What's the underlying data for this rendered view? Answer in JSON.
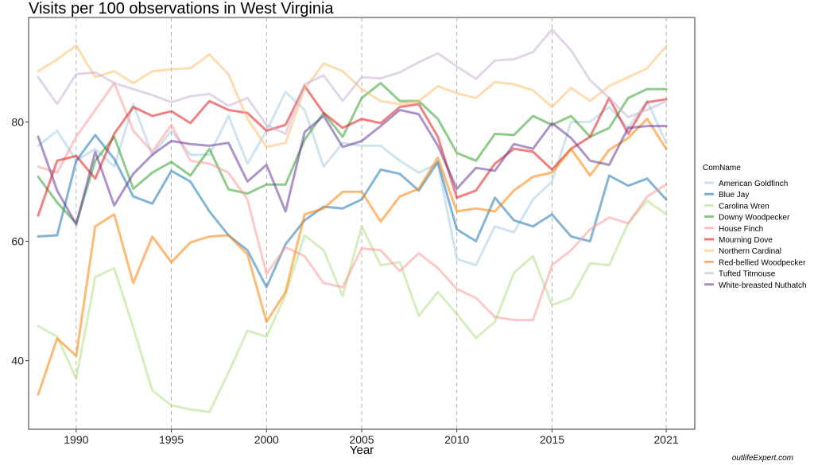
{
  "title": "Visits per 100 observations in West Virginia",
  "watermark": "outlifeExpert.com",
  "chart_data": {
    "type": "line",
    "title": "Visits per 100 observations in West Virginia",
    "xlabel": "Year",
    "ylabel": "",
    "xlim": [
      1987.5,
      2022.5
    ],
    "ylim": [
      28.5,
      97.5
    ],
    "xticks": [
      1990,
      1995,
      2000,
      2005,
      2010,
      2015,
      2021
    ],
    "yticks": [
      40,
      60,
      80
    ],
    "grid": "vertical dashed",
    "legend_title": "ComName",
    "legend_position": "right",
    "x": [
      1988,
      1989,
      1990,
      1991,
      1992,
      1993,
      1994,
      1995,
      1996,
      1997,
      1998,
      1999,
      2000,
      2001,
      2002,
      2003,
      2004,
      2005,
      2006,
      2007,
      2008,
      2009,
      2010,
      2011,
      2012,
      2013,
      2014,
      2015,
      2016,
      2017,
      2018,
      2019,
      2020,
      2021
    ],
    "series": [
      {
        "name": "American Goldfinch",
        "color": "#a6cee3",
        "values": [
          76.0,
          78.5,
          73.5,
          75.5,
          72.5,
          83.0,
          74.5,
          78.5,
          74.5,
          74.5,
          81.0,
          73.0,
          78.5,
          85.0,
          82.0,
          72.5,
          76.5,
          76.0,
          76.0,
          73.5,
          71.5,
          73.0,
          57.0,
          56.0,
          62.5,
          61.5,
          67.0,
          70.0,
          80.0,
          80.0,
          82.5,
          79.0,
          83.5,
          76.5
        ]
      },
      {
        "name": "Blue Jay",
        "color": "#1f78b4",
        "values": [
          60.8,
          61.0,
          73.5,
          77.8,
          73.8,
          67.5,
          66.3,
          71.8,
          70.0,
          65.0,
          61.0,
          58.5,
          52.3,
          59.5,
          63.5,
          65.8,
          65.5,
          67.0,
          72.0,
          71.3,
          68.5,
          73.3,
          62.0,
          60.0,
          67.3,
          63.5,
          62.5,
          64.5,
          60.8,
          60.0,
          71.0,
          69.3,
          70.5,
          67.0
        ]
      },
      {
        "name": "Carolina Wren",
        "color": "#b2df8a",
        "values": [
          45.8,
          44.0,
          37.0,
          54.0,
          55.5,
          45.5,
          35.0,
          32.5,
          31.8,
          31.4,
          38.0,
          45.0,
          44.0,
          51.0,
          61.0,
          58.5,
          50.8,
          62.5,
          56.0,
          56.5,
          47.5,
          51.5,
          47.8,
          43.8,
          46.5,
          54.7,
          57.5,
          49.3,
          50.5,
          56.3,
          56.0,
          63.0,
          66.8,
          64.5
        ]
      },
      {
        "name": "Downy Woodpecker",
        "color": "#33a02c",
        "values": [
          70.8,
          66.5,
          63.0,
          73.5,
          77.5,
          68.8,
          71.5,
          73.3,
          71.0,
          75.5,
          68.7,
          68.0,
          69.5,
          69.5,
          77.0,
          81.5,
          77.5,
          84.0,
          86.5,
          83.5,
          83.5,
          80.5,
          74.8,
          73.5,
          78.0,
          77.8,
          81.0,
          79.5,
          81.0,
          77.5,
          79.0,
          84.0,
          85.5,
          85.5
        ]
      },
      {
        "name": "House Finch",
        "color": "#fb9a99",
        "values": [
          72.5,
          71.5,
          77.5,
          82.0,
          86.5,
          78.5,
          75.0,
          79.5,
          73.5,
          73.0,
          71.5,
          67.0,
          54.5,
          59.0,
          57.5,
          53.0,
          52.3,
          58.8,
          58.5,
          55.0,
          58.0,
          55.5,
          52.0,
          50.5,
          47.3,
          46.8,
          46.8,
          56.0,
          58.5,
          62.0,
          64.0,
          63.0,
          67.5,
          69.5
        ]
      },
      {
        "name": "Mourning Dove",
        "color": "#e31a1c",
        "values": [
          64.3,
          73.5,
          74.3,
          70.5,
          78.0,
          82.5,
          81.0,
          81.8,
          79.8,
          83.5,
          82.0,
          81.5,
          78.5,
          79.5,
          86.0,
          81.5,
          79.0,
          80.5,
          79.8,
          82.5,
          83.0,
          77.5,
          67.3,
          68.5,
          73.0,
          75.5,
          75.0,
          72.0,
          75.5,
          77.5,
          84.0,
          78.0,
          83.3,
          83.8
        ]
      },
      {
        "name": "Northern Cardinal",
        "color": "#fdbf6f",
        "values": [
          88.5,
          90.5,
          92.8,
          87.5,
          88.5,
          86.5,
          88.5,
          88.8,
          89.0,
          91.3,
          88.0,
          80.5,
          75.8,
          76.5,
          85.5,
          89.8,
          88.5,
          85.5,
          83.5,
          83.0,
          83.5,
          86.0,
          84.8,
          84.0,
          86.7,
          86.3,
          85.3,
          82.5,
          85.7,
          83.5,
          86.0,
          87.5,
          89.0,
          92.7
        ]
      },
      {
        "name": "Red-bellied Woodpecker",
        "color": "#ff7f00",
        "values": [
          34.3,
          43.7,
          40.8,
          62.5,
          64.5,
          53.0,
          60.8,
          56.5,
          59.8,
          60.8,
          61.0,
          57.8,
          46.5,
          51.5,
          64.5,
          65.5,
          68.3,
          68.3,
          63.3,
          67.5,
          68.8,
          74.0,
          65.0,
          65.5,
          65.0,
          68.5,
          70.8,
          71.5,
          75.5,
          71.0,
          75.3,
          77.3,
          80.5,
          75.5
        ]
      },
      {
        "name": "Tufted Titmouse",
        "color": "#cab2d6",
        "values": [
          87.5,
          83.0,
          88.0,
          88.3,
          86.5,
          85.5,
          84.5,
          83.3,
          84.3,
          84.7,
          82.7,
          84.0,
          79.5,
          78.0,
          86.3,
          87.8,
          83.5,
          87.5,
          87.3,
          88.3,
          90.0,
          91.5,
          89.3,
          87.2,
          90.3,
          90.5,
          91.7,
          95.5,
          92.0,
          87.0,
          84.0,
          80.8,
          82.0,
          83.5
        ]
      },
      {
        "name": "White-breasted Nuthatch",
        "color": "#6a3d9a",
        "values": [
          77.5,
          68.5,
          62.8,
          75.0,
          66.0,
          71.3,
          74.5,
          76.8,
          76.3,
          76.0,
          76.5,
          70.0,
          72.8,
          65.0,
          78.3,
          81.0,
          75.8,
          76.8,
          79.3,
          82.0,
          81.3,
          76.0,
          68.8,
          72.3,
          71.8,
          76.3,
          75.5,
          79.8,
          77.3,
          73.5,
          72.8,
          79.0,
          79.3,
          79.3
        ]
      }
    ]
  }
}
